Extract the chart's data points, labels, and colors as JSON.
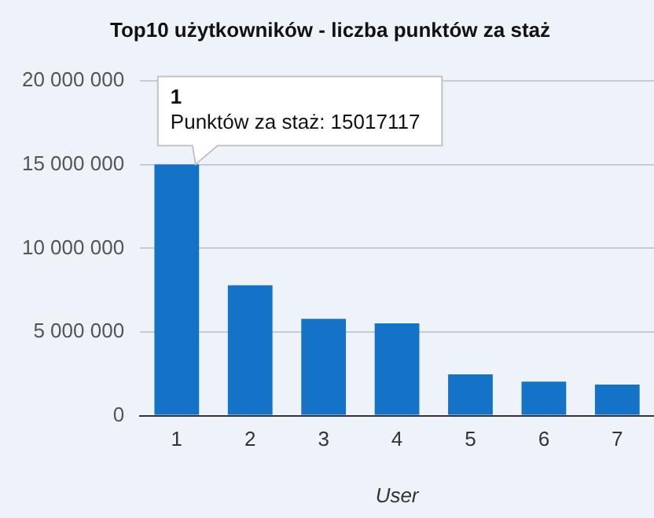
{
  "chart_data": {
    "type": "bar",
    "title": "Top10 użytkowników - liczba punktów za staż",
    "xlabel": "User",
    "categories": [
      "1",
      "2",
      "3",
      "4",
      "5",
      "6",
      "7"
    ],
    "values": [
      15017117,
      7790000,
      5790000,
      5520000,
      2470000,
      2030000,
      1860000
    ],
    "color": "#1473c6",
    "ylim": [
      0,
      20000000
    ],
    "yticks": [
      0,
      {
        "value": 5000000,
        "label": "5 000 000"
      },
      {
        "value": 10000000,
        "label": "10 000 000"
      },
      {
        "value": 15000000,
        "label": "15 000 000"
      },
      {
        "value": 20000000,
        "label": "20 000 000"
      }
    ],
    "grid": "y",
    "legend": false,
    "annotations": [
      {
        "text": "1\nPunktów za staż: 15017117",
        "x": "1",
        "y": 15017117
      }
    ]
  }
}
